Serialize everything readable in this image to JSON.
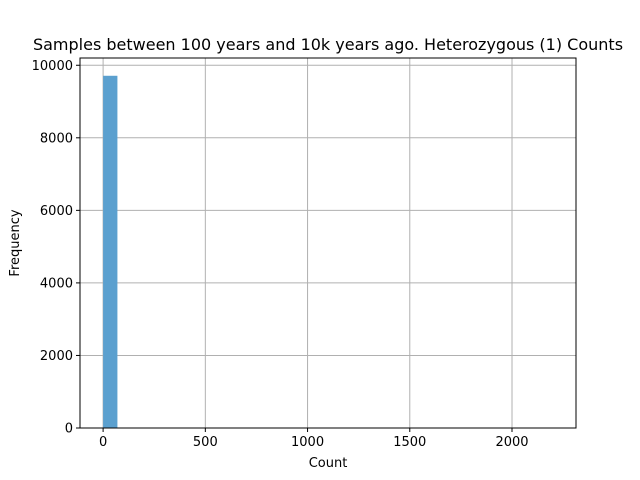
{
  "chart_data": {
    "type": "bar",
    "title": "Samples between 100 years and 10k years ago. Heterozygous (1) Counts",
    "xlabel": "Count",
    "ylabel": "Frequency",
    "xlim": [
      -113,
      2313
    ],
    "ylim": [
      0,
      10200
    ],
    "xticks": [
      0,
      500,
      1000,
      1500,
      2000
    ],
    "yticks": [
      0,
      2000,
      4000,
      6000,
      8000,
      10000
    ],
    "grid": true,
    "bar_color": "#5ba0cf",
    "bins": [
      {
        "x0": 0,
        "x1": 70,
        "value": 9710
      }
    ]
  }
}
